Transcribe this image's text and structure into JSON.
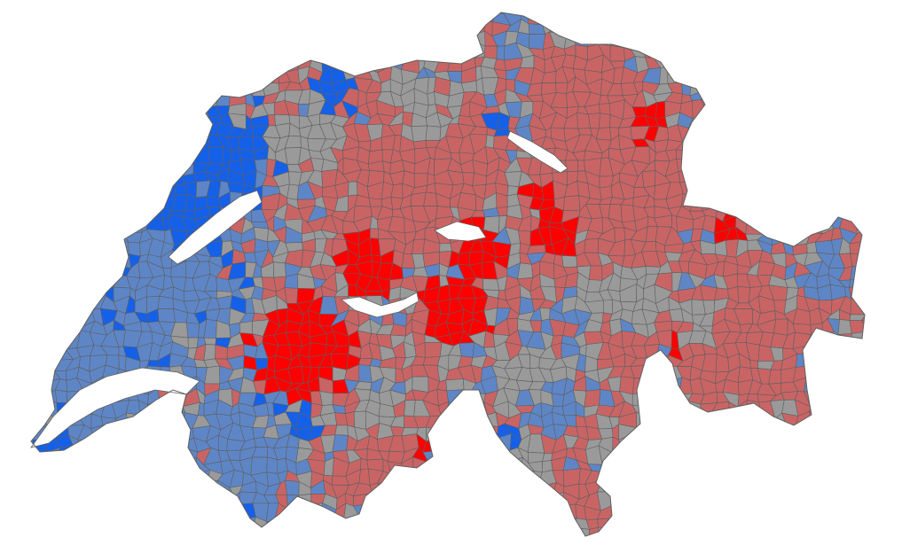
{
  "map": {
    "title": "",
    "colors": {
      "strong_red": "#ff0000",
      "light_red": "#c96465",
      "gray": "#9a9a9a",
      "light_blue": "#5e86c6",
      "strong_blue": "#1560e8",
      "border": "#5f5f5f",
      "water": "#ffffff"
    },
    "categories": [
      {
        "key": "strong_red"
      },
      {
        "key": "light_red"
      },
      {
        "key": "gray"
      },
      {
        "key": "light_blue"
      },
      {
        "key": "strong_blue"
      }
    ]
  }
}
